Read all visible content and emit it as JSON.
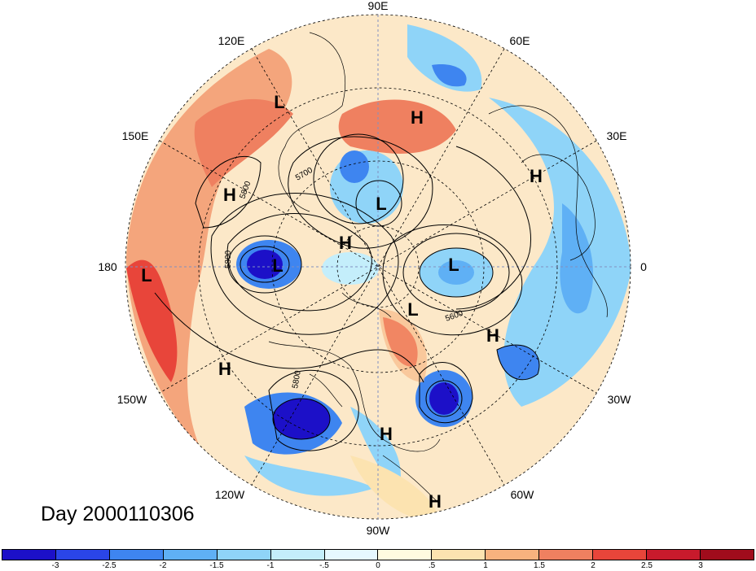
{
  "title": "Day 2000110306",
  "longitude_labels": [
    {
      "id": "90e",
      "text": "90E"
    },
    {
      "id": "60e",
      "text": "60E"
    },
    {
      "id": "30e",
      "text": "30E"
    },
    {
      "id": "0",
      "text": "0"
    },
    {
      "id": "30w",
      "text": "30W"
    },
    {
      "id": "60w",
      "text": "60W"
    },
    {
      "id": "90w",
      "text": "90W"
    },
    {
      "id": "120w",
      "text": "120W"
    },
    {
      "id": "150w",
      "text": "150W"
    },
    {
      "id": "180",
      "text": "180"
    },
    {
      "id": "150e",
      "text": "150E"
    },
    {
      "id": "120e",
      "text": "120E"
    }
  ],
  "pressure_centers": [
    "L",
    "H",
    "L",
    "H",
    "L",
    "L",
    "L",
    "L",
    "H",
    "H",
    "H",
    "H",
    "H",
    "L",
    "H"
  ],
  "contour_labels": [
    "5800",
    "5700",
    "5800",
    "5600",
    "5800"
  ],
  "colorbar": {
    "ticks": [
      "-3",
      "-2.5",
      "-2",
      "-1.5",
      "-1",
      "-.5",
      "0",
      ".5",
      "1",
      "1.5",
      "2",
      "2.5",
      "3"
    ],
    "colors": [
      "#1c10c8",
      "#2a45e8",
      "#3e85f0",
      "#5fb0f5",
      "#8fd4f8",
      "#c4eefb",
      "#e6f8ff",
      "#fffbe0",
      "#fce3b0",
      "#f7b27e",
      "#ef8060",
      "#e8453a",
      "#c81a2c",
      "#a00c1c"
    ]
  }
}
